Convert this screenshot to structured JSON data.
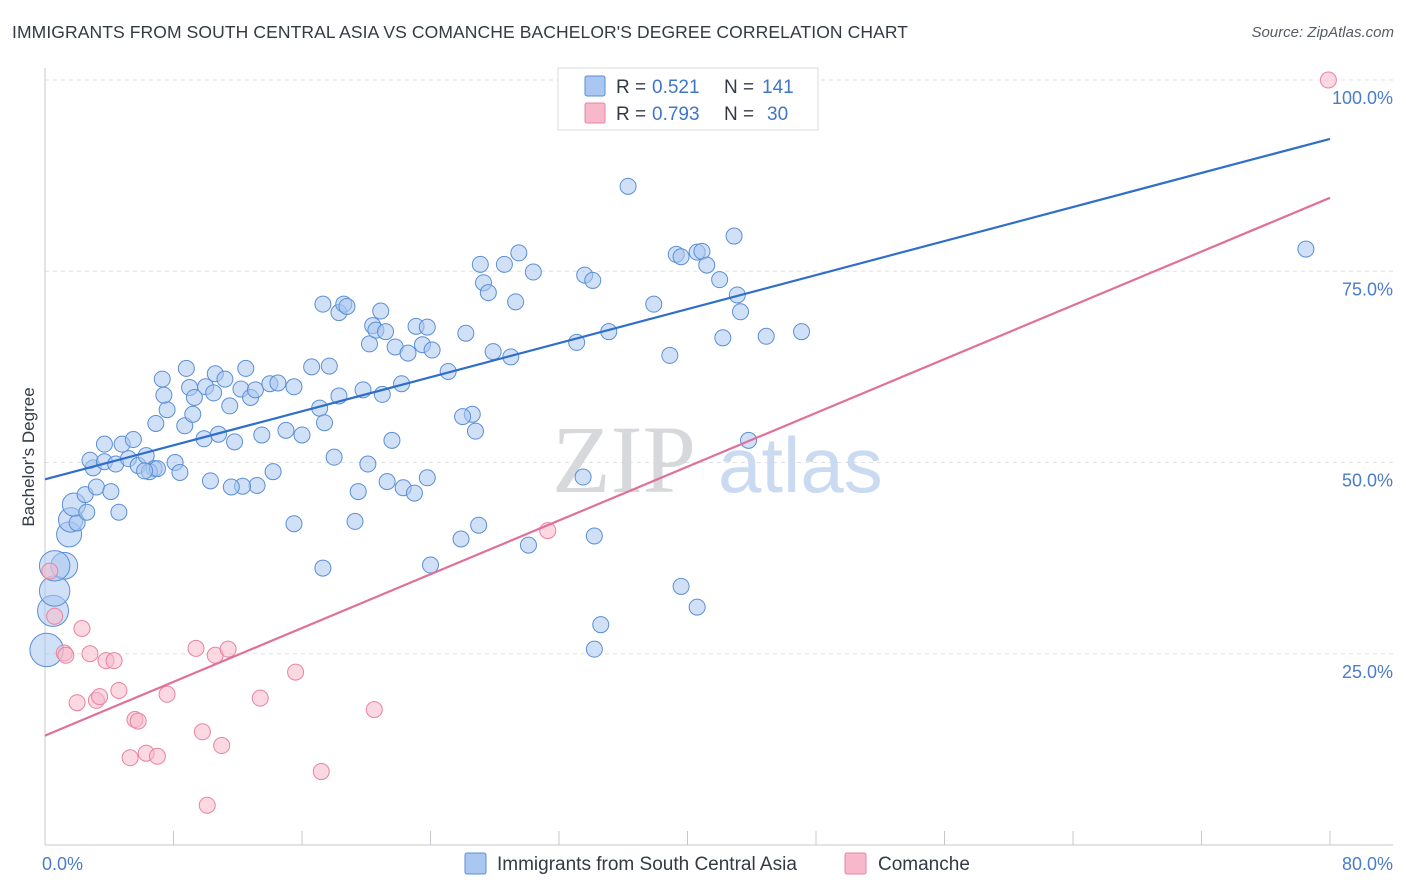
{
  "header": {
    "title": "IMMIGRANTS FROM SOUTH CENTRAL ASIA VS COMANCHE BACHELOR'S DEGREE CORRELATION CHART",
    "source": "Source: ZipAtlas.com"
  },
  "watermark": {
    "zip": "ZIP",
    "atlas": "atlas"
  },
  "colors": {
    "blue_fill": "#a9c7f0",
    "blue_stroke": "#5b8fd6",
    "blue_line": "#2f6fc9",
    "pink_fill": "#f7b8cb",
    "pink_stroke": "#e7849f",
    "pink_line": "#e0709a",
    "tick_text": "#4a7cc9",
    "grid": "#dde1e6"
  },
  "chart_data": {
    "type": "scatter",
    "title": "IMMIGRANTS FROM SOUTH CENTRAL ASIA VS COMANCHE BACHELOR'S DEGREE CORRELATION CHART",
    "xlabel": "",
    "ylabel": "Bachelor's Degree",
    "xlim": [
      0,
      80
    ],
    "ylim": [
      0,
      100
    ],
    "x_tick_labels": [
      "0.0%",
      "80.0%"
    ],
    "y_ticks": [
      25,
      50,
      75,
      100
    ],
    "y_tick_labels": [
      "25.0%",
      "50.0%",
      "75.0%",
      "100.0%"
    ],
    "legend": [
      {
        "r_label": "R =",
        "r_value": "0.521",
        "n_label": "N =",
        "n_value": "141"
      },
      {
        "r_label": "R =",
        "r_value": "0.793",
        "n_label": "N =",
        "n_value": "30"
      }
    ],
    "series": [
      {
        "name": "Immigrants from South Central Asia",
        "color": "blue",
        "trend": {
          "x0": 0,
          "y0": 47.8,
          "x1": 80,
          "y1": 92.3
        },
        "points": [
          [
            0.1,
            25.5
          ],
          [
            0.5,
            30.6
          ],
          [
            0.6,
            33.2
          ],
          [
            1.2,
            36.5
          ],
          [
            0.6,
            36.5
          ],
          [
            1.5,
            40.6
          ],
          [
            1.6,
            42.5
          ],
          [
            2.0,
            42.1
          ],
          [
            1.8,
            44.5
          ],
          [
            2.6,
            43.5
          ],
          [
            2.5,
            45.8
          ],
          [
            3.2,
            46.8
          ],
          [
            4.1,
            46.2
          ],
          [
            3.0,
            49.3
          ],
          [
            2.8,
            50.3
          ],
          [
            3.7,
            50.1
          ],
          [
            4.4,
            49.8
          ],
          [
            3.7,
            52.4
          ],
          [
            4.8,
            52.4
          ],
          [
            5.5,
            53.0
          ],
          [
            4.6,
            43.5
          ],
          [
            5.2,
            50.5
          ],
          [
            5.8,
            49.6
          ],
          [
            6.3,
            50.9
          ],
          [
            6.8,
            49.2
          ],
          [
            6.5,
            48.8
          ],
          [
            7.0,
            49.2
          ],
          [
            6.2,
            48.9
          ],
          [
            8.1,
            50.0
          ],
          [
            8.4,
            48.7
          ],
          [
            6.9,
            55.1
          ],
          [
            7.6,
            56.9
          ],
          [
            7.4,
            58.8
          ],
          [
            8.7,
            54.8
          ],
          [
            9.2,
            56.3
          ],
          [
            9.0,
            59.8
          ],
          [
            7.3,
            60.9
          ],
          [
            8.8,
            62.3
          ],
          [
            9.9,
            53.1
          ],
          [
            10.3,
            47.6
          ],
          [
            10.8,
            53.7
          ],
          [
            10.0,
            59.9
          ],
          [
            10.5,
            59.1
          ],
          [
            10.6,
            61.6
          ],
          [
            11.2,
            60.9
          ],
          [
            11.5,
            57.4
          ],
          [
            12.2,
            59.6
          ],
          [
            12.5,
            62.3
          ],
          [
            12.8,
            58.5
          ],
          [
            13.1,
            59.5
          ],
          [
            13.2,
            47.0
          ],
          [
            12.3,
            46.9
          ],
          [
            13.5,
            53.6
          ],
          [
            11.8,
            52.7
          ],
          [
            14.0,
            60.3
          ],
          [
            14.5,
            60.4
          ],
          [
            14.2,
            48.8
          ],
          [
            15.5,
            59.9
          ],
          [
            16.6,
            62.5
          ],
          [
            17.1,
            57.1
          ],
          [
            16.0,
            53.6
          ],
          [
            17.4,
            55.2
          ],
          [
            17.7,
            62.6
          ],
          [
            18.3,
            58.7
          ],
          [
            15.5,
            42.0
          ],
          [
            17.3,
            70.7
          ],
          [
            18.3,
            69.6
          ],
          [
            18.6,
            70.7
          ],
          [
            18.8,
            70.4
          ],
          [
            19.3,
            42.3
          ],
          [
            19.8,
            59.5
          ],
          [
            20.4,
            67.9
          ],
          [
            19.5,
            46.2
          ],
          [
            20.1,
            49.8
          ],
          [
            20.2,
            65.5
          ],
          [
            20.6,
            67.3
          ],
          [
            20.9,
            69.8
          ],
          [
            21.2,
            67.1
          ],
          [
            21.6,
            52.9
          ],
          [
            22.2,
            60.3
          ],
          [
            21.8,
            65.1
          ],
          [
            22.6,
            64.3
          ],
          [
            22.3,
            46.7
          ],
          [
            23.1,
            67.8
          ],
          [
            23.5,
            65.4
          ],
          [
            23.8,
            67.7
          ],
          [
            23.0,
            46.0
          ],
          [
            24.1,
            64.7
          ],
          [
            23.8,
            48.0
          ],
          [
            25.1,
            61.9
          ],
          [
            26.2,
            66.9
          ],
          [
            26.6,
            56.3
          ],
          [
            26.8,
            54.1
          ],
          [
            27.1,
            75.9
          ],
          [
            27.3,
            73.5
          ],
          [
            27.6,
            72.2
          ],
          [
            27.9,
            64.5
          ],
          [
            28.6,
            75.9
          ],
          [
            29.0,
            63.8
          ],
          [
            29.3,
            71.0
          ],
          [
            29.5,
            77.4
          ],
          [
            30.4,
            74.9
          ],
          [
            25.9,
            40.0
          ],
          [
            27.0,
            41.8
          ],
          [
            24.0,
            36.6
          ],
          [
            30.1,
            39.2
          ],
          [
            33.1,
            65.7
          ],
          [
            33.5,
            48.1
          ],
          [
            34.2,
            40.4
          ],
          [
            33.6,
            74.5
          ],
          [
            34.1,
            73.8
          ],
          [
            35.1,
            67.1
          ],
          [
            34.6,
            28.8
          ],
          [
            34.2,
            25.6
          ],
          [
            36.3,
            86.1
          ],
          [
            37.9,
            70.7
          ],
          [
            38.9,
            64.0
          ],
          [
            39.3,
            77.2
          ],
          [
            39.6,
            76.9
          ],
          [
            40.6,
            77.5
          ],
          [
            40.9,
            77.6
          ],
          [
            41.2,
            75.8
          ],
          [
            42.0,
            73.9
          ],
          [
            42.2,
            66.3
          ],
          [
            42.9,
            79.6
          ],
          [
            43.1,
            71.9
          ],
          [
            43.3,
            69.7
          ],
          [
            43.8,
            52.9
          ],
          [
            44.9,
            66.5
          ],
          [
            47.1,
            67.1
          ],
          [
            39.6,
            33.8
          ],
          [
            40.6,
            31.1
          ],
          [
            78.5,
            77.9
          ],
          [
            17.3,
            36.2
          ],
          [
            11.6,
            46.8
          ],
          [
            9.3,
            58.5
          ],
          [
            18.0,
            50.7
          ],
          [
            15.0,
            54.2
          ],
          [
            21.0,
            58.9
          ],
          [
            26.0,
            56.0
          ],
          [
            21.3,
            47.5
          ]
        ]
      },
      {
        "name": "Comanche",
        "color": "pink",
        "trend": {
          "x0": 0,
          "y0": 14.3,
          "x1": 80,
          "y1": 84.6
        },
        "points": [
          [
            0.3,
            35.8
          ],
          [
            0.6,
            29.9
          ],
          [
            1.2,
            25.1
          ],
          [
            1.3,
            24.8
          ],
          [
            2.3,
            28.3
          ],
          [
            2.0,
            18.6
          ],
          [
            2.8,
            25.0
          ],
          [
            3.2,
            18.9
          ],
          [
            3.4,
            19.4
          ],
          [
            3.8,
            24.1
          ],
          [
            4.3,
            24.1
          ],
          [
            4.6,
            20.2
          ],
          [
            5.3,
            11.4
          ],
          [
            5.6,
            16.4
          ],
          [
            5.8,
            16.2
          ],
          [
            6.3,
            12.0
          ],
          [
            7.0,
            11.6
          ],
          [
            7.6,
            19.7
          ],
          [
            9.4,
            25.7
          ],
          [
            9.8,
            14.8
          ],
          [
            10.1,
            5.2
          ],
          [
            10.6,
            24.8
          ],
          [
            11.4,
            25.6
          ],
          [
            11.0,
            13.0
          ],
          [
            13.4,
            19.2
          ],
          [
            15.6,
            22.6
          ],
          [
            17.2,
            9.6
          ],
          [
            20.5,
            17.7
          ],
          [
            31.3,
            41.1
          ],
          [
            79.9,
            100.0
          ]
        ]
      }
    ],
    "bottom_legend": [
      "Immigrants from South Central Asia",
      "Comanche"
    ]
  }
}
